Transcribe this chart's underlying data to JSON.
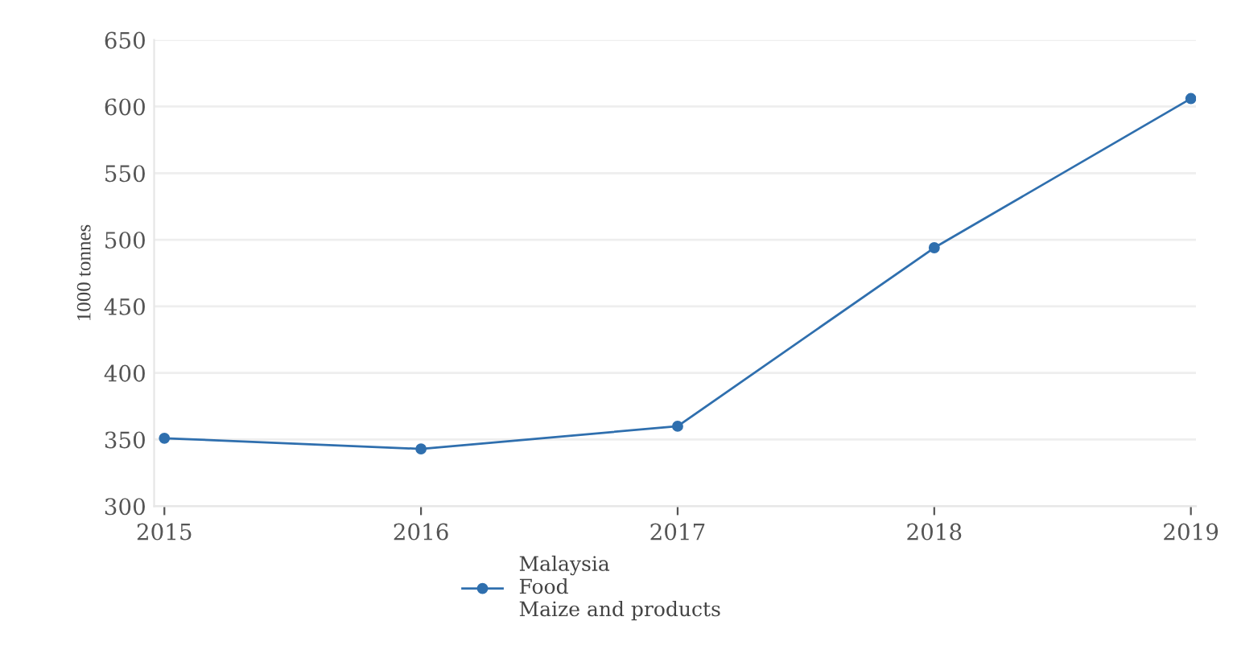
{
  "chart_data": {
    "type": "line",
    "ylabel": "1000 tonnes",
    "x": [
      2015,
      2016,
      2017,
      2018,
      2019
    ],
    "series": [
      {
        "name": "Malaysia\nFood\nMaize and products",
        "color": "#2f6fae",
        "values": [
          351,
          343,
          360,
          494,
          606
        ]
      }
    ],
    "xlim": [
      2014.96,
      2019.02
    ],
    "xticks": [
      2015,
      2016,
      2017,
      2018,
      2019
    ],
    "ylim": [
      300,
      650
    ],
    "yticks": [
      300,
      350,
      400,
      450,
      500,
      550,
      600,
      650
    ],
    "grid": "y",
    "legend": "bottom",
    "marker": "circle",
    "line_style": "solid"
  }
}
